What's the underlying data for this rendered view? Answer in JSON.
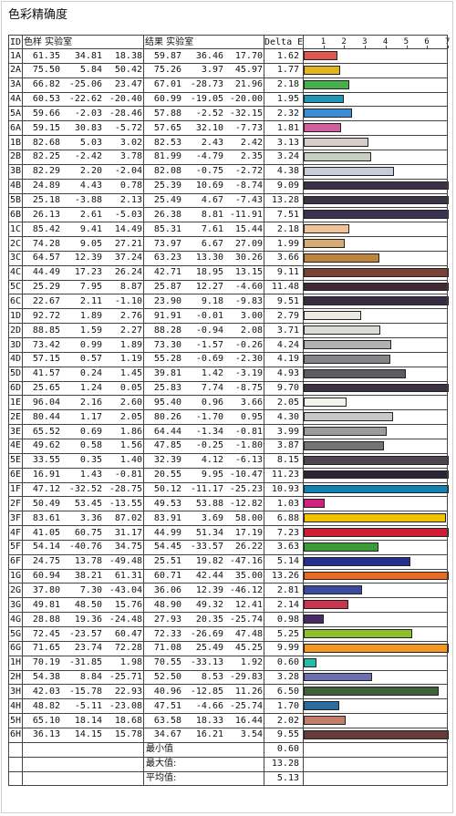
{
  "title": "色彩精确度",
  "headers": {
    "id": "ID",
    "sample": "色样 实验室",
    "result": "结果 实验室",
    "delta": "Delta E"
  },
  "chart_data": {
    "type": "table",
    "axis_ticks": [
      "1",
      "2",
      "3",
      "4",
      "5",
      "6",
      "7"
    ],
    "bar_axis_max": 7,
    "rows": [
      {
        "id": "1A",
        "L": "61.35",
        "a": "34.81",
        "b": "18.38",
        "L2": "59.87",
        "a2": "36.46",
        "b2": "17.70",
        "de": 1.62,
        "de_text": "1.62",
        "color": "#e0584f"
      },
      {
        "id": "2A",
        "L": "75.50",
        "a": "5.84",
        "b": "50.42",
        "L2": "75.26",
        "a2": "3.97",
        "b2": "45.97",
        "de": 1.77,
        "de_text": "1.77",
        "color": "#e2b51c"
      },
      {
        "id": "3A",
        "L": "66.82",
        "a": "-25.06",
        "b": "23.47",
        "L2": "67.01",
        "a2": "-28.73",
        "b2": "21.96",
        "de": 2.18,
        "de_text": "2.18",
        "color": "#48b04b"
      },
      {
        "id": "4A",
        "L": "60.53",
        "a": "-22.62",
        "b": "-20.40",
        "L2": "60.99",
        "a2": "-19.05",
        "b2": "-20.00",
        "de": 1.95,
        "de_text": "1.95",
        "color": "#1f96b8"
      },
      {
        "id": "5A",
        "L": "59.66",
        "a": "-2.03",
        "b": "-28.46",
        "L2": "57.88",
        "a2": "-2.52",
        "b2": "-32.15",
        "de": 2.32,
        "de_text": "2.32",
        "color": "#3b8ed3"
      },
      {
        "id": "6A",
        "L": "59.15",
        "a": "30.83",
        "b": "-5.72",
        "L2": "57.65",
        "a2": "32.10",
        "b2": "-7.73",
        "de": 1.81,
        "de_text": "1.81",
        "color": "#d0609e"
      },
      {
        "id": "1B",
        "L": "82.68",
        "a": "5.03",
        "b": "3.02",
        "L2": "82.53",
        "a2": "2.43",
        "b2": "2.42",
        "de": 3.13,
        "de_text": "3.13",
        "color": "#d6ccc8"
      },
      {
        "id": "2B",
        "L": "82.25",
        "a": "-2.42",
        "b": "3.78",
        "L2": "81.99",
        "a2": "-4.79",
        "b2": "2.35",
        "de": 3.24,
        "de_text": "3.24",
        "color": "#c6d0c2"
      },
      {
        "id": "3B",
        "L": "82.29",
        "a": "2.20",
        "b": "-2.04",
        "L2": "82.08",
        "a2": "-0.75",
        "b2": "-2.72",
        "de": 4.38,
        "de_text": "4.38",
        "color": "#c7cdd8"
      },
      {
        "id": "4B",
        "L": "24.89",
        "a": "4.43",
        "b": "0.78",
        "L2": "25.39",
        "a2": "10.69",
        "b2": "-8.74",
        "de": 9.09,
        "de_text": "9.09",
        "color": "#3c3048"
      },
      {
        "id": "5B",
        "L": "25.18",
        "a": "-3.88",
        "b": "2.13",
        "L2": "25.49",
        "a2": "4.67",
        "b2": "-7.43",
        "de": 13.28,
        "de_text": "13.28",
        "color": "#3a3446"
      },
      {
        "id": "6B",
        "L": "26.13",
        "a": "2.61",
        "b": "-5.03",
        "L2": "26.38",
        "a2": "8.81",
        "b2": "-11.91",
        "de": 7.51,
        "de_text": "7.51",
        "color": "#3b3150"
      },
      {
        "id": "1C",
        "L": "85.42",
        "a": "9.41",
        "b": "14.49",
        "L2": "85.31",
        "a2": "7.61",
        "b2": "15.44",
        "de": 2.18,
        "de_text": "2.18",
        "color": "#f1c39a"
      },
      {
        "id": "2C",
        "L": "74.28",
        "a": "9.05",
        "b": "27.21",
        "L2": "73.97",
        "a2": "6.67",
        "b2": "27.09",
        "de": 1.99,
        "de_text": "1.99",
        "color": "#d9ab74"
      },
      {
        "id": "3C",
        "L": "64.57",
        "a": "12.39",
        "b": "37.24",
        "L2": "63.23",
        "a2": "13.30",
        "b2": "30.26",
        "de": 3.66,
        "de_text": "3.66",
        "color": "#c0843d"
      },
      {
        "id": "4C",
        "L": "44.49",
        "a": "17.23",
        "b": "26.24",
        "L2": "42.71",
        "a2": "18.95",
        "b2": "13.15",
        "de": 9.11,
        "de_text": "9.11",
        "color": "#7a4232"
      },
      {
        "id": "5C",
        "L": "25.29",
        "a": "7.95",
        "b": "8.87",
        "L2": "25.87",
        "a2": "12.27",
        "b2": "-4.60",
        "de": 11.48,
        "de_text": "11.48",
        "color": "#412a36"
      },
      {
        "id": "6C",
        "L": "22.67",
        "a": "2.11",
        "b": "-1.10",
        "L2": "23.90",
        "a2": "9.18",
        "b2": "-9.83",
        "de": 9.51,
        "de_text": "9.51",
        "color": "#372c44"
      },
      {
        "id": "1D",
        "L": "92.72",
        "a": "1.89",
        "b": "2.76",
        "L2": "91.91",
        "a2": "-0.01",
        "b2": "3.00",
        "de": 2.79,
        "de_text": "2.79",
        "color": "#ebe9e2"
      },
      {
        "id": "2D",
        "L": "88.85",
        "a": "1.59",
        "b": "2.27",
        "L2": "88.28",
        "a2": "-0.94",
        "b2": "2.08",
        "de": 3.71,
        "de_text": "3.71",
        "color": "#dddbd6"
      },
      {
        "id": "3D",
        "L": "73.42",
        "a": "0.99",
        "b": "1.89",
        "L2": "73.30",
        "a2": "-1.57",
        "b2": "-0.26",
        "de": 4.24,
        "de_text": "4.24",
        "color": "#b1b1b0"
      },
      {
        "id": "4D",
        "L": "57.15",
        "a": "0.57",
        "b": "1.19",
        "L2": "55.28",
        "a2": "-0.69",
        "b2": "-2.30",
        "de": 4.19,
        "de_text": "4.19",
        "color": "#858589"
      },
      {
        "id": "5D",
        "L": "41.57",
        "a": "0.24",
        "b": "1.45",
        "L2": "39.81",
        "a2": "1.42",
        "b2": "-3.19",
        "de": 4.93,
        "de_text": "4.93",
        "color": "#5e5c62"
      },
      {
        "id": "6D",
        "L": "25.65",
        "a": "1.24",
        "b": "0.05",
        "L2": "25.83",
        "a2": "7.74",
        "b2": "-8.75",
        "de": 9.7,
        "de_text": "9.70",
        "color": "#3d3244"
      },
      {
        "id": "1E",
        "L": "96.04",
        "a": "2.16",
        "b": "2.60",
        "L2": "95.40",
        "a2": "0.96",
        "b2": "3.66",
        "de": 2.05,
        "de_text": "2.05",
        "color": "#f4f3ec"
      },
      {
        "id": "2E",
        "L": "80.44",
        "a": "1.17",
        "b": "2.05",
        "L2": "80.26",
        "a2": "-1.70",
        "b2": "0.95",
        "de": 4.3,
        "de_text": "4.30",
        "color": "#c8c9c7"
      },
      {
        "id": "3E",
        "L": "65.52",
        "a": "0.69",
        "b": "1.86",
        "L2": "64.44",
        "a2": "-1.34",
        "b2": "-0.81",
        "de": 3.99,
        "de_text": "3.99",
        "color": "#9c9c9d"
      },
      {
        "id": "4E",
        "L": "49.62",
        "a": "0.58",
        "b": "1.56",
        "L2": "47.85",
        "a2": "-0.25",
        "b2": "-1.80",
        "de": 3.87,
        "de_text": "3.87",
        "color": "#747476"
      },
      {
        "id": "5E",
        "L": "33.55",
        "a": "0.35",
        "b": "1.40",
        "L2": "32.39",
        "a2": "4.12",
        "b2": "-6.13",
        "de": 8.15,
        "de_text": "8.15",
        "color": "#4d4650"
      },
      {
        "id": "6E",
        "L": "16.91",
        "a": "1.43",
        "b": "-0.81",
        "L2": "20.55",
        "a2": "9.95",
        "b2": "-10.47",
        "de": 11.23,
        "de_text": "11.23",
        "color": "#2b2434"
      },
      {
        "id": "1F",
        "L": "47.12",
        "a": "-32.52",
        "b": "-28.75",
        "L2": "50.12",
        "a2": "-11.17",
        "b2": "-25.23",
        "de": 10.93,
        "de_text": "10.93",
        "color": "#0f84b2"
      },
      {
        "id": "2F",
        "L": "50.49",
        "a": "53.45",
        "b": "-13.55",
        "L2": "49.53",
        "a2": "53.88",
        "b2": "-12.82",
        "de": 1.03,
        "de_text": "1.03",
        "color": "#d1217e"
      },
      {
        "id": "3F",
        "L": "83.61",
        "a": "3.36",
        "b": "87.02",
        "L2": "83.91",
        "a2": "3.69",
        "b2": "58.00",
        "de": 6.88,
        "de_text": "6.88",
        "color": "#f2c200"
      },
      {
        "id": "4F",
        "L": "41.05",
        "a": "60.75",
        "b": "31.17",
        "L2": "44.99",
        "a2": "51.34",
        "b2": "17.19",
        "de": 7.23,
        "de_text": "7.23",
        "color": "#d21c34"
      },
      {
        "id": "5F",
        "L": "54.14",
        "a": "-40.76",
        "b": "34.75",
        "L2": "54.45",
        "a2": "-33.57",
        "b2": "26.22",
        "de": 3.63,
        "de_text": "3.63",
        "color": "#3d9a3a"
      },
      {
        "id": "6F",
        "L": "24.75",
        "a": "13.78",
        "b": "-49.48",
        "L2": "25.51",
        "a2": "19.82",
        "b2": "-47.16",
        "de": 5.14,
        "de_text": "5.14",
        "color": "#24308c"
      },
      {
        "id": "1G",
        "L": "60.94",
        "a": "38.21",
        "b": "61.31",
        "L2": "60.71",
        "a2": "42.44",
        "b2": "35.00",
        "de": 13.26,
        "de_text": "13.26",
        "color": "#ec6a1e"
      },
      {
        "id": "2G",
        "L": "37.80",
        "a": "7.30",
        "b": "-43.04",
        "L2": "36.06",
        "a2": "12.39",
        "b2": "-46.12",
        "de": 2.81,
        "de_text": "2.81",
        "color": "#3a4a9e"
      },
      {
        "id": "3G",
        "L": "49.81",
        "a": "48.50",
        "b": "15.76",
        "L2": "48.90",
        "a2": "49.32",
        "b2": "12.41",
        "de": 2.14,
        "de_text": "2.14",
        "color": "#c9354e"
      },
      {
        "id": "4G",
        "L": "28.88",
        "a": "19.36",
        "b": "-24.48",
        "L2": "27.93",
        "a2": "20.35",
        "b2": "-25.74",
        "de": 0.98,
        "de_text": "0.98",
        "color": "#4a2a66"
      },
      {
        "id": "5G",
        "L": "72.45",
        "a": "-23.57",
        "b": "60.47",
        "L2": "72.33",
        "a2": "-26.69",
        "b2": "47.48",
        "de": 5.25,
        "de_text": "5.25",
        "color": "#8cc02a"
      },
      {
        "id": "6G",
        "L": "71.65",
        "a": "23.74",
        "b": "72.28",
        "L2": "71.08",
        "a2": "25.49",
        "b2": "45.25",
        "de": 9.99,
        "de_text": "9.99",
        "color": "#f3981e"
      },
      {
        "id": "1H",
        "L": "70.19",
        "a": "-31.85",
        "b": "1.98",
        "L2": "70.55",
        "a2": "-33.13",
        "b2": "1.92",
        "de": 0.6,
        "de_text": "0.60",
        "color": "#22bfa8"
      },
      {
        "id": "2H",
        "L": "54.38",
        "a": "8.84",
        "b": "-25.71",
        "L2": "52.50",
        "a2": "8.53",
        "b2": "-29.83",
        "de": 3.28,
        "de_text": "3.28",
        "color": "#6d6eb4"
      },
      {
        "id": "3H",
        "L": "42.03",
        "a": "-15.78",
        "b": "22.93",
        "L2": "40.96",
        "a2": "-12.85",
        "b2": "11.26",
        "de": 6.5,
        "de_text": "6.50",
        "color": "#40613a"
      },
      {
        "id": "4H",
        "L": "48.82",
        "a": "-5.11",
        "b": "-23.08",
        "L2": "47.51",
        "a2": "-4.66",
        "b2": "-25.74",
        "de": 1.7,
        "de_text": "1.70",
        "color": "#2c6b9e"
      },
      {
        "id": "5H",
        "L": "65.10",
        "a": "18.14",
        "b": "18.68",
        "L2": "63.58",
        "a2": "18.33",
        "b2": "16.44",
        "de": 2.02,
        "de_text": "2.02",
        "color": "#c47d66"
      },
      {
        "id": "6H",
        "L": "36.13",
        "a": "14.15",
        "b": "15.78",
        "L2": "34.67",
        "a2": "16.21",
        "b2": "3.54",
        "de": 9.55,
        "de_text": "9.55",
        "color": "#683a38"
      }
    ],
    "summary": [
      {
        "label": "最小值",
        "value": "0.60"
      },
      {
        "label": "最大值:",
        "value": "13.28"
      },
      {
        "label": "平均值:",
        "value": "5.13"
      }
    ]
  }
}
